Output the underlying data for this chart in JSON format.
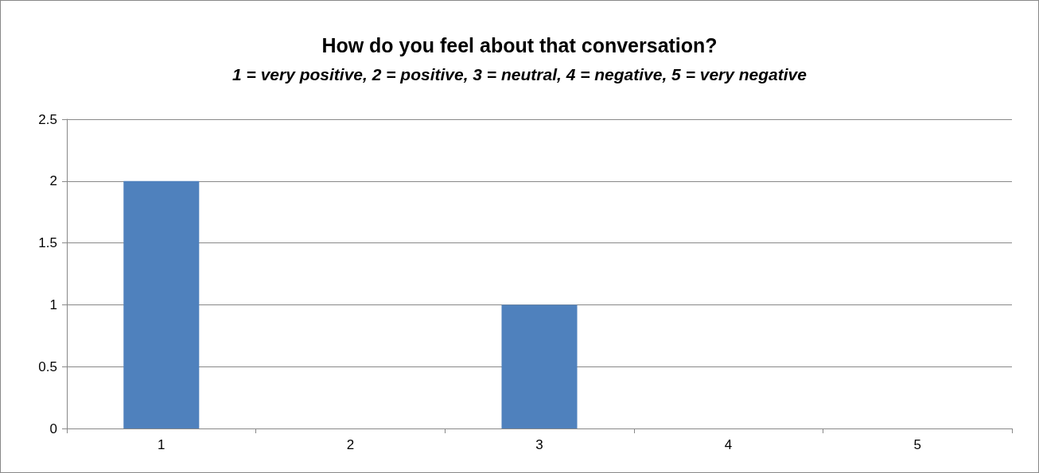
{
  "chart_data": {
    "type": "bar",
    "title": "How do you feel about that conversation?",
    "subtitle": "1 = very positive, 2 = positive, 3 = neutral, 4 = negative, 5 = very negative",
    "categories": [
      "1",
      "2",
      "3",
      "4",
      "5"
    ],
    "values": [
      2,
      0,
      1,
      0,
      0
    ],
    "color": "#4f81bd",
    "ylim": [
      0,
      2.5
    ],
    "yticks": [
      0,
      0.5,
      1,
      1.5,
      2,
      2.5
    ],
    "grid": "y"
  }
}
